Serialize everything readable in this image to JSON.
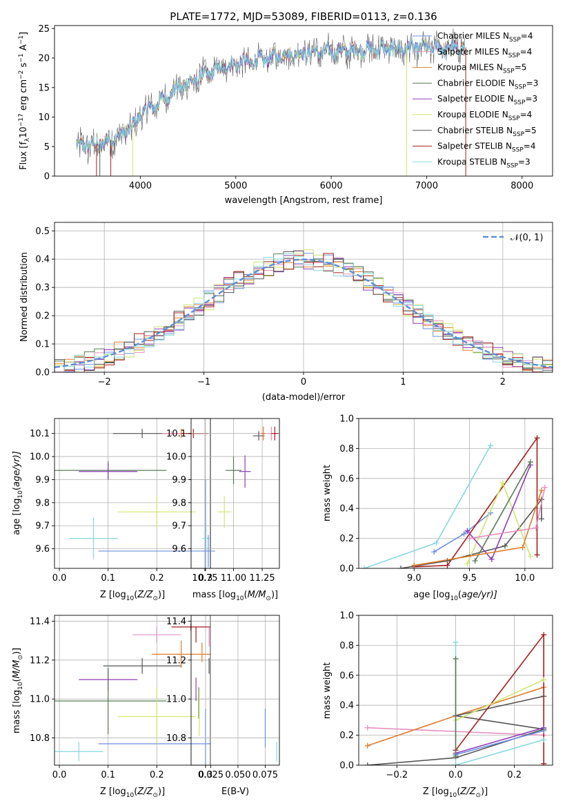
{
  "figure": {
    "title": "PLATE=1772, MJD=53089, FIBERID=0113, z=0.136"
  },
  "colors": {
    "m1": "#6b8fdf",
    "m2": "#e07b2a",
    "m3": "#e58fbf",
    "m4": "#567a56",
    "m5": "#8e3cb5",
    "m6": "#cfe66e",
    "m7": "#555555",
    "m8": "#a51c1c",
    "m9": "#86d8dc",
    "gaussian": "#5b8fd8",
    "grid": "#b0b0b0"
  },
  "chart_data": [
    {
      "id": "spectrum",
      "type": "line",
      "xlabel": "wavelength [Angstrom, rest frame]",
      "ylabel": "Flux [f",
      "ylabel_mid": "10",
      "ylabel_sup1": "−17",
      "ylabel_mid2": " erg cm",
      "ylabel_sup2": "−2",
      "ylabel_mid3": " s",
      "ylabel_sup3": "−1",
      "ylabel_end": " A",
      "ylabel_sup4": "−1",
      "ylabel_close": "]",
      "xlim": [
        3100,
        8320
      ],
      "ylim": [
        0,
        25.5
      ],
      "xticks": [
        4000,
        5000,
        6000,
        7000,
        8000
      ],
      "yticks": [
        0,
        5,
        10,
        15,
        20,
        25
      ],
      "grid": false,
      "legend_position": "top-right",
      "series": [
        {
          "name": "Chabrier MILES",
          "sub": "SSP",
          "n": "=4",
          "color": "m1"
        },
        {
          "name": "Salpeter MILES",
          "sub": "SSP",
          "n": "=4",
          "color": "m3"
        },
        {
          "name": "Kroupa MILES",
          "sub": "SSP",
          "n": "=5",
          "color": "m2"
        },
        {
          "name": "Chabrier ELODIE",
          "sub": "SSP",
          "n": "=3",
          "color": "m4"
        },
        {
          "name": "Salpeter ELODIE",
          "sub": "SSP",
          "n": "=3",
          "color": "m5"
        },
        {
          "name": "Kroupa ELODIE",
          "sub": "SSP",
          "n": "=4",
          "color": "m6"
        },
        {
          "name": "Chabrier STELIB",
          "sub": "SSP",
          "n": "=5",
          "color": "m7"
        },
        {
          "name": "Salpeter STELIB",
          "sub": "SSP",
          "n": "=4",
          "color": "m8"
        },
        {
          "name": "Kroupa STELIB",
          "sub": "SSP",
          "n": "=3",
          "color": "m9"
        }
      ],
      "continuum": [
        [
          3330,
          5.0
        ],
        [
          3600,
          5.5
        ],
        [
          3800,
          7.0
        ],
        [
          3950,
          9.0
        ],
        [
          4000,
          10.5
        ],
        [
          4200,
          12.5
        ],
        [
          4400,
          15.0
        ],
        [
          4600,
          16.5
        ],
        [
          4800,
          18.0
        ],
        [
          5000,
          19.0
        ],
        [
          5200,
          19.5
        ],
        [
          5500,
          20.5
        ],
        [
          5800,
          21.0
        ],
        [
          6200,
          21.3
        ],
        [
          6600,
          21.6
        ],
        [
          7000,
          21.7
        ],
        [
          7400,
          21.8
        ]
      ],
      "dips": [
        {
          "x": 3540,
          "y": 0,
          "color": "m8"
        },
        {
          "x": 3575,
          "y": 0,
          "color": "m7"
        },
        {
          "x": 3690,
          "y": 0,
          "color": "m8"
        },
        {
          "x": 3920,
          "y": 0,
          "color": "m6"
        },
        {
          "x": 6790,
          "y": 0,
          "color": "m6"
        },
        {
          "x": 7410,
          "y": 0,
          "color": "m8"
        },
        {
          "x": 5890,
          "y": 18.5,
          "color": "m7"
        },
        {
          "x": 4860,
          "y": 19.0,
          "color": "m7"
        }
      ]
    },
    {
      "id": "residuals",
      "type": "histogram",
      "xlabel": "(data-model)/error",
      "ylabel": "Normed distribution",
      "xlim": [
        -2.5,
        2.5
      ],
      "ylim": [
        0,
        0.53
      ],
      "xticks": [
        -2,
        -1,
        0,
        1,
        2
      ],
      "yticks": [
        0.0,
        0.1,
        0.2,
        0.3,
        0.4,
        0.5
      ],
      "grid": true,
      "legend_position": "top-right",
      "gaussian_label": "𝒩(0, 1)",
      "bin_width": 0.1,
      "series_colors": [
        "m1",
        "m2",
        "m3",
        "m4",
        "m5",
        "m6",
        "m7",
        "m8",
        "m9"
      ]
    },
    {
      "id": "z-age",
      "type": "errorbar",
      "xlabel": "Z [log",
      "xlabel_sub": "10",
      "xlabel_rest": "(Z/Z",
      "xlabel_sub2": "⊙",
      "xlabel_close": ")]",
      "ylabel": "age  [log",
      "ylabel_sub": "10",
      "ylabel_rest": "(age/yr)]",
      "xlim": [
        -0.01,
        0.31
      ],
      "ylim": [
        9.515,
        10.165
      ],
      "xticks": [
        0.0,
        0.1,
        0.2,
        0.3
      ],
      "yticks": [
        9.6,
        9.7,
        9.8,
        9.9,
        10.0,
        10.1
      ],
      "grid": true,
      "points": [
        {
          "x": 0.17,
          "y": 10.1,
          "xerr": 0.06,
          "yerr": 0.02,
          "color": "m7"
        },
        {
          "x": 0.25,
          "y": 10.1,
          "xerr": 0.04,
          "yerr": 0.02,
          "color": "m2"
        },
        {
          "x": 0.275,
          "y": 10.1,
          "xerr": 0.03,
          "yerr": 0.02,
          "color": "m8"
        },
        {
          "x": 0.23,
          "y": 10.1,
          "xerr": 0.02,
          "yerr": 0.01,
          "color": "m3"
        },
        {
          "x": 0.1,
          "y": 9.94,
          "xerr": 0.12,
          "yerr": 0.04,
          "color": "m4"
        },
        {
          "x": 0.1,
          "y": 9.935,
          "xerr": 0.06,
          "yerr": 0.035,
          "color": "m5"
        },
        {
          "x": 0.2,
          "y": 9.76,
          "xerr": 0.08,
          "yerr": 0.07,
          "color": "m6"
        },
        {
          "x": 0.07,
          "y": 9.645,
          "xerr": 0.05,
          "yerr": 0.09,
          "color": "m9"
        },
        {
          "x": 0.3,
          "y": 9.59,
          "xerr": 0.22,
          "yerr": 0.31,
          "color": "m1"
        }
      ]
    },
    {
      "id": "mass-age",
      "type": "errorbar",
      "xlabel": "mass [log",
      "xlabel_sub": "10",
      "xlabel_rest": "(M/M",
      "xlabel_sub2": "⊙",
      "xlabel_close": ")]",
      "xlim": [
        10.63,
        11.4
      ],
      "ylim": [
        9.515,
        10.165
      ],
      "xticks": [
        10.75,
        11.0,
        11.25
      ],
      "xticklabels": [
        "10.75",
        "11.00",
        "11.25"
      ],
      "yticks": [
        9.6,
        9.7,
        9.8,
        9.9,
        10.0,
        10.1
      ],
      "grid": true,
      "points": [
        {
          "x": 11.22,
          "y": 10.09,
          "xerr": 0.05,
          "yerr": 0.02,
          "color": "m7"
        },
        {
          "x": 11.26,
          "y": 10.1,
          "xerr": 0.02,
          "yerr": 0.03,
          "color": "m2"
        },
        {
          "x": 11.33,
          "y": 10.1,
          "xerr": 0.03,
          "yerr": 0.03,
          "color": "m3"
        },
        {
          "x": 11.36,
          "y": 10.1,
          "xerr": 0.03,
          "yerr": 0.03,
          "color": "m8"
        },
        {
          "x": 11.0,
          "y": 9.94,
          "xerr": 0.07,
          "yerr": 0.06,
          "color": "m4"
        },
        {
          "x": 11.1,
          "y": 9.935,
          "xerr": 0.05,
          "yerr": 0.07,
          "color": "m5"
        },
        {
          "x": 10.92,
          "y": 9.76,
          "xerr": 0.06,
          "yerr": 0.07,
          "color": "m6"
        },
        {
          "x": 10.76,
          "y": 9.645,
          "xerr": 0.03,
          "yerr": 0.05,
          "color": "m9"
        },
        {
          "x": 10.78,
          "y": 9.59,
          "xerr": 0.06,
          "yerr": 0.07,
          "color": "m1"
        }
      ]
    },
    {
      "id": "age-weight",
      "type": "line",
      "xlabel": "age  [log",
      "xlabel_sub": "10",
      "xlabel_rest": "(age/yr)]",
      "ylabel": "mass weight",
      "xlim": [
        8.5,
        10.25
      ],
      "ylim": [
        0,
        1.0
      ],
      "xticks": [
        9.0,
        9.5,
        10.0
      ],
      "yticks": [
        0.0,
        0.2,
        0.4,
        0.6,
        0.8,
        1.0
      ],
      "grid": true,
      "series": [
        {
          "color": "m9",
          "points": [
            [
              8.55,
              0.0
            ],
            [
              9.2,
              0.17
            ],
            [
              9.69,
              0.82
            ]
          ]
        },
        {
          "color": "m1",
          "points": [
            [
              9.18,
              0.11
            ],
            [
              9.45,
              0.23
            ],
            [
              9.69,
              0.37
            ]
          ]
        },
        {
          "color": "m8",
          "points": [
            [
              9.0,
              0.01
            ],
            [
              9.3,
              0.02
            ],
            [
              10.11,
              0.87
            ],
            [
              10.11,
              0.09
            ]
          ]
        },
        {
          "color": "m7",
          "points": [
            [
              8.88,
              0.0
            ],
            [
              9.3,
              0.05
            ],
            [
              9.82,
              0.15
            ],
            [
              10.15,
              0.46
            ],
            [
              10.15,
              0.33
            ]
          ]
        },
        {
          "color": "m6",
          "points": [
            [
              9.48,
              0.03
            ],
            [
              9.8,
              0.57
            ],
            [
              10.05,
              0.08
            ]
          ]
        },
        {
          "color": "m5",
          "points": [
            [
              9.48,
              0.25
            ],
            [
              9.7,
              0.06
            ],
            [
              10.05,
              0.69
            ]
          ]
        },
        {
          "color": "m4",
          "points": [
            [
              9.55,
              0.05
            ],
            [
              10.05,
              0.71
            ]
          ]
        },
        {
          "color": "m2",
          "points": [
            [
              9.0,
              0.02
            ],
            [
              9.98,
              0.14
            ],
            [
              10.15,
              0.52
            ]
          ]
        },
        {
          "color": "m3",
          "points": [
            [
              9.5,
              0.2
            ],
            [
              10.1,
              0.27
            ],
            [
              10.18,
              0.54
            ]
          ]
        }
      ]
    },
    {
      "id": "z-mass",
      "type": "errorbar",
      "xlabel": "Z [log",
      "xlabel_sub": "10",
      "xlabel_rest": "(Z/Z",
      "xlabel_sub2": "⊙",
      "xlabel_close": ")]",
      "ylabel": "mass [log",
      "ylabel_sub": "10",
      "ylabel_rest": "(M/M",
      "ylabel_sub2": "⊙",
      "ylabel_close": ")]",
      "xlim": [
        -0.01,
        0.31
      ],
      "ylim": [
        10.66,
        11.43
      ],
      "xticks": [
        0.0,
        0.1,
        0.2,
        0.3
      ],
      "yticks": [
        10.8,
        11.0,
        11.2,
        11.4
      ],
      "grid": true,
      "points": [
        {
          "x": 0.27,
          "y": 11.37,
          "xerr": 0.04,
          "yerr": 0.02,
          "color": "m8"
        },
        {
          "x": 0.2,
          "y": 11.33,
          "xerr": 0.05,
          "yerr": 0.04,
          "color": "m3"
        },
        {
          "x": 0.25,
          "y": 11.23,
          "xerr": 0.06,
          "yerr": 0.07,
          "color": "m2"
        },
        {
          "x": 0.17,
          "y": 11.17,
          "xerr": 0.08,
          "yerr": 0.04,
          "color": "m7"
        },
        {
          "x": 0.1,
          "y": 11.1,
          "xerr": 0.06,
          "yerr": 0.06,
          "color": "m5"
        },
        {
          "x": 0.1,
          "y": 10.99,
          "xerr": 0.12,
          "yerr": 0.17,
          "color": "m4"
        },
        {
          "x": 0.2,
          "y": 10.91,
          "xerr": 0.08,
          "yerr": 0.15,
          "color": "m6"
        },
        {
          "x": 0.3,
          "y": 10.77,
          "xerr": 0.22,
          "yerr": 0.18,
          "color": "m1"
        },
        {
          "x": 0.04,
          "y": 10.73,
          "xerr": 0.05,
          "yerr": 0.05,
          "color": "m9"
        }
      ]
    },
    {
      "id": "ebv-mass",
      "type": "errorbar",
      "xlabel": "E(B-V)",
      "xlim": [
        0.007,
        0.088
      ],
      "ylim": [
        10.66,
        11.43
      ],
      "xticks": [
        0.025,
        0.05,
        0.075
      ],
      "xticklabels": [
        "0.025",
        "0.050",
        "0.075"
      ],
      "yticks": [
        10.8,
        11.0,
        11.2,
        11.4
      ],
      "grid": true,
      "points": [
        {
          "x": 0.0115,
          "y": 11.33,
          "xerr": 0.0,
          "yerr": 0.04,
          "color": "m8"
        },
        {
          "x": 0.0235,
          "y": 11.32,
          "xerr": 0.0,
          "yerr": 0.05,
          "color": "m3"
        },
        {
          "x": 0.017,
          "y": 11.24,
          "xerr": 0.0,
          "yerr": 0.05,
          "color": "m2"
        },
        {
          "x": 0.0235,
          "y": 11.17,
          "xerr": 0.0,
          "yerr": 0.04,
          "color": "m7"
        },
        {
          "x": 0.0115,
          "y": 11.05,
          "xerr": 0.0,
          "yerr": 0.06,
          "color": "m5"
        },
        {
          "x": 0.014,
          "y": 10.98,
          "xerr": 0.0,
          "yerr": 0.08,
          "color": "m4"
        },
        {
          "x": 0.0145,
          "y": 10.93,
          "xerr": 0.0,
          "yerr": 0.12,
          "color": "m6"
        },
        {
          "x": 0.075,
          "y": 10.85,
          "xerr": 0.0,
          "yerr": 0.1,
          "color": "m1"
        },
        {
          "x": 0.0855,
          "y": 10.73,
          "xerr": 0.0,
          "yerr": 0.05,
          "color": "m9"
        }
      ]
    },
    {
      "id": "z-weight",
      "type": "line",
      "xlabel": "Z [log",
      "xlabel_sub": "10",
      "xlabel_rest": "(Z/Z",
      "xlabel_sub2": "⊙",
      "xlabel_close": ")]",
      "ylabel": "mass weight",
      "xlim": [
        -0.33,
        0.33
      ],
      "ylim": [
        0,
        1.0
      ],
      "xticks": [
        -0.2,
        0.0,
        0.2
      ],
      "yticks": [
        0.0,
        0.2,
        0.4,
        0.6,
        0.8,
        1.0
      ],
      "grid": true,
      "series": [
        {
          "color": "m3",
          "points": [
            [
              -0.3,
              0.25
            ],
            [
              0.3,
              0.2
            ]
          ]
        },
        {
          "color": "m2",
          "points": [
            [
              -0.3,
              0.13
            ],
            [
              0.0,
              0.33
            ],
            [
              0.3,
              0.52
            ]
          ]
        },
        {
          "color": "m7",
          "points": [
            [
              -0.3,
              0.0
            ],
            [
              0.0,
              0.05
            ],
            [
              0.3,
              0.24
            ],
            [
              0.0,
              0.33
            ],
            [
              0.3,
              0.46
            ]
          ]
        },
        {
          "color": "m8",
          "points": [
            [
              0.0,
              0.1
            ],
            [
              0.3,
              0.87
            ],
            [
              0.3,
              0.01
            ]
          ]
        },
        {
          "color": "m6",
          "points": [
            [
              0.0,
              0.3
            ],
            [
              0.3,
              0.57
            ]
          ]
        },
        {
          "color": "m5",
          "points": [
            [
              0.0,
              0.08
            ],
            [
              0.3,
              0.25
            ]
          ]
        },
        {
          "color": "m1",
          "points": [
            [
              0.0,
              0.07
            ],
            [
              0.3,
              0.23
            ]
          ]
        },
        {
          "color": "m9",
          "points": [
            [
              0.0,
              0.82
            ],
            [
              0.0,
              0.0
            ],
            [
              0.3,
              0.17
            ]
          ]
        },
        {
          "color": "m4",
          "points": [
            [
              0.0,
              0.71
            ],
            [
              0.0,
              0.06
            ]
          ]
        }
      ]
    }
  ]
}
